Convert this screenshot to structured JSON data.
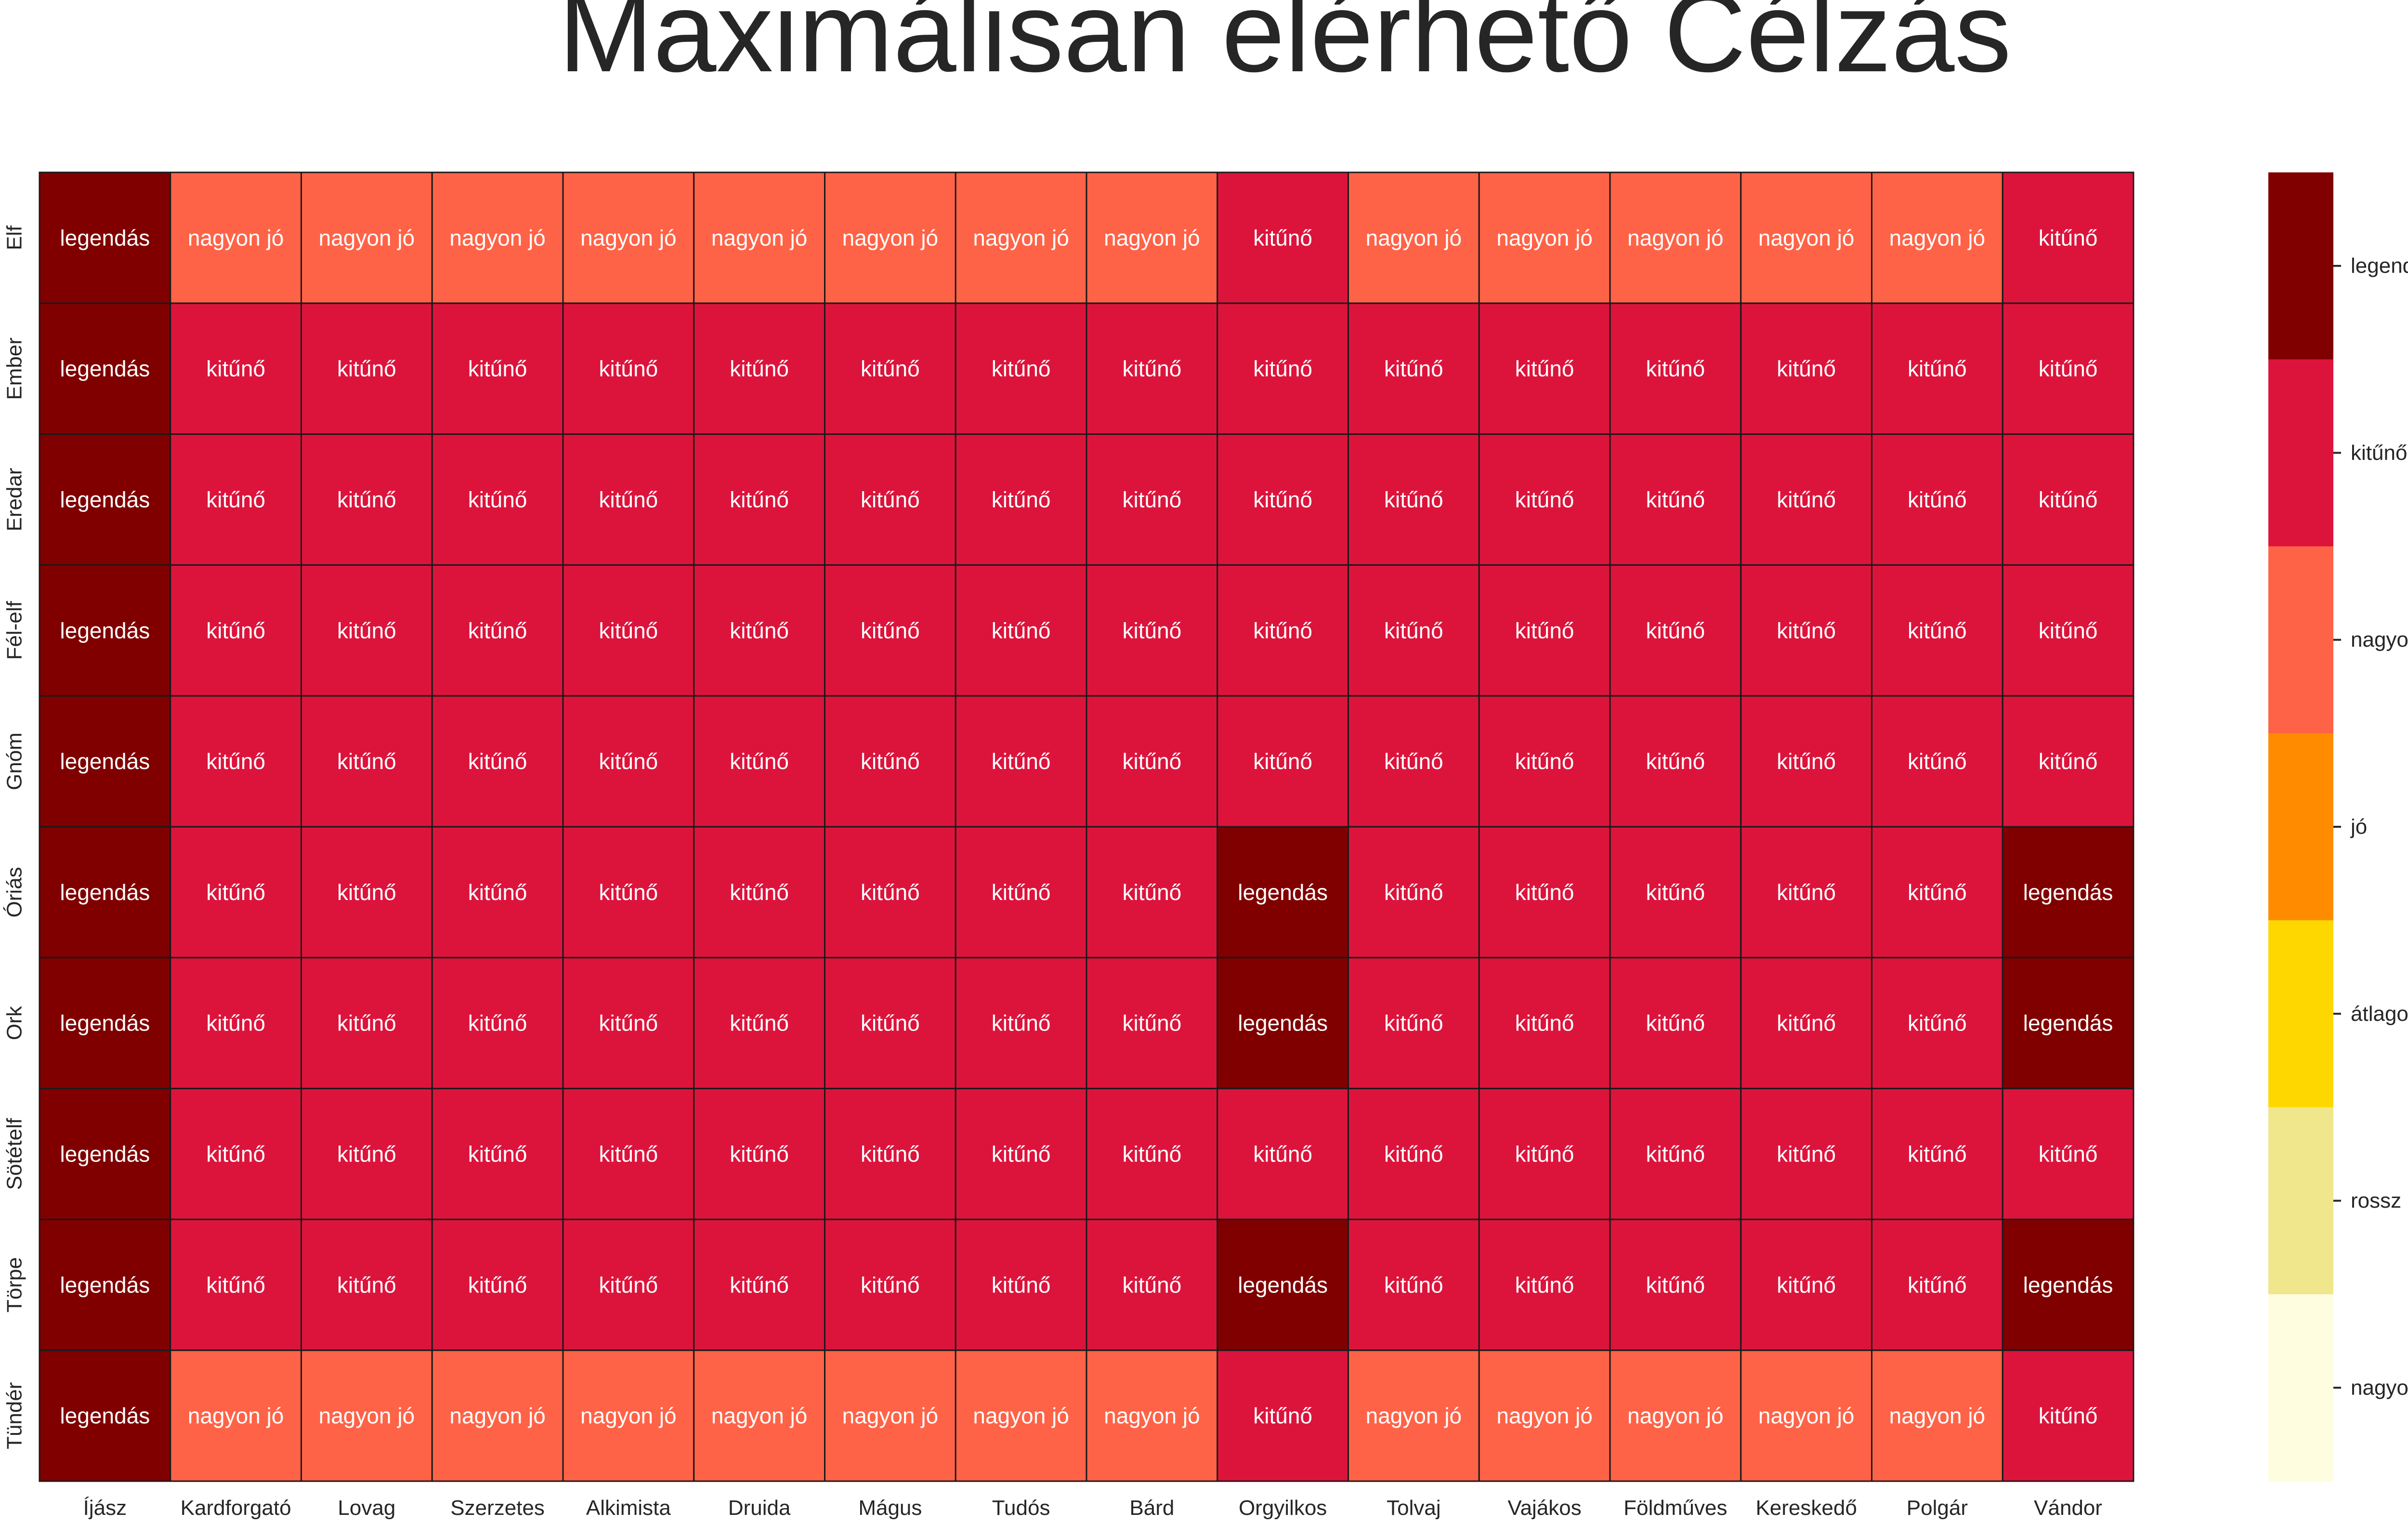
{
  "chart_data": {
    "type": "heatmap",
    "title": "Maximálisan elérhető Célzás",
    "xlabel": "",
    "ylabel": "",
    "x_categories": [
      "Íjász",
      "Kardforgató",
      "Lovag",
      "Szerzetes",
      "Alkimista",
      "Druida",
      "Mágus",
      "Tudós",
      "Bárd",
      "Orgyilkos",
      "Tolvaj",
      "Vajákos",
      "Földműves",
      "Kereskedő",
      "Polgár",
      "Vándor"
    ],
    "y_categories": [
      "Elf",
      "Ember",
      "Eredar",
      "Fél-elf",
      "Gnóm",
      "Óriás",
      "Ork",
      "Sötételf",
      "Törpe",
      "Tündér"
    ],
    "levels": [
      "nagyon rossz",
      "rossz",
      "átlagos",
      "jó",
      "nagyon jó",
      "kitűnő",
      "legendás"
    ],
    "level_colors": [
      "#fffde0",
      "#f0e68c",
      "#ffd700",
      "#ff8c00",
      "#ff6347",
      "#dc143c",
      "#800000"
    ],
    "colorbar_ticks": [
      "legendás",
      "kitűnő",
      "nagyon jó",
      "jó",
      "átlagos",
      "rossz",
      "nagyon rossz"
    ],
    "values": [
      [
        "legendás",
        "nagyon jó",
        "nagyon jó",
        "nagyon jó",
        "nagyon jó",
        "nagyon jó",
        "nagyon jó",
        "nagyon jó",
        "nagyon jó",
        "kitűnő",
        "nagyon jó",
        "nagyon jó",
        "nagyon jó",
        "nagyon jó",
        "nagyon jó",
        "kitűnő"
      ],
      [
        "legendás",
        "kitűnő",
        "kitűnő",
        "kitűnő",
        "kitűnő",
        "kitűnő",
        "kitűnő",
        "kitűnő",
        "kitűnő",
        "kitűnő",
        "kitűnő",
        "kitűnő",
        "kitűnő",
        "kitűnő",
        "kitűnő",
        "kitűnő"
      ],
      [
        "legendás",
        "kitűnő",
        "kitűnő",
        "kitűnő",
        "kitűnő",
        "kitűnő",
        "kitűnő",
        "kitűnő",
        "kitűnő",
        "kitűnő",
        "kitűnő",
        "kitűnő",
        "kitűnő",
        "kitűnő",
        "kitűnő",
        "kitűnő"
      ],
      [
        "legendás",
        "kitűnő",
        "kitűnő",
        "kitűnő",
        "kitűnő",
        "kitűnő",
        "kitűnő",
        "kitűnő",
        "kitűnő",
        "kitűnő",
        "kitűnő",
        "kitűnő",
        "kitűnő",
        "kitűnő",
        "kitűnő",
        "kitűnő"
      ],
      [
        "legendás",
        "kitűnő",
        "kitűnő",
        "kitűnő",
        "kitűnő",
        "kitűnő",
        "kitűnő",
        "kitűnő",
        "kitűnő",
        "kitűnő",
        "kitűnő",
        "kitűnő",
        "kitűnő",
        "kitűnő",
        "kitűnő",
        "kitűnő"
      ],
      [
        "legendás",
        "kitűnő",
        "kitűnő",
        "kitűnő",
        "kitűnő",
        "kitűnő",
        "kitűnő",
        "kitűnő",
        "kitűnő",
        "legendás",
        "kitűnő",
        "kitűnő",
        "kitűnő",
        "kitűnő",
        "kitűnő",
        "legendás"
      ],
      [
        "legendás",
        "kitűnő",
        "kitűnő",
        "kitűnő",
        "kitűnő",
        "kitűnő",
        "kitűnő",
        "kitűnő",
        "kitűnő",
        "legendás",
        "kitűnő",
        "kitűnő",
        "kitűnő",
        "kitűnő",
        "kitűnő",
        "legendás"
      ],
      [
        "legendás",
        "kitűnő",
        "kitűnő",
        "kitűnő",
        "kitűnő",
        "kitűnő",
        "kitűnő",
        "kitűnő",
        "kitűnő",
        "kitűnő",
        "kitűnő",
        "kitűnő",
        "kitűnő",
        "kitűnő",
        "kitűnő",
        "kitűnő"
      ],
      [
        "legendás",
        "kitűnő",
        "kitűnő",
        "kitűnő",
        "kitűnő",
        "kitűnő",
        "kitűnő",
        "kitűnő",
        "kitűnő",
        "legendás",
        "kitűnő",
        "kitűnő",
        "kitűnő",
        "kitűnő",
        "kitűnő",
        "legendás"
      ],
      [
        "legendás",
        "nagyon jó",
        "nagyon jó",
        "nagyon jó",
        "nagyon jó",
        "nagyon jó",
        "nagyon jó",
        "nagyon jó",
        "nagyon jó",
        "kitűnő",
        "nagyon jó",
        "nagyon jó",
        "nagyon jó",
        "nagyon jó",
        "nagyon jó",
        "kitűnő"
      ]
    ]
  }
}
